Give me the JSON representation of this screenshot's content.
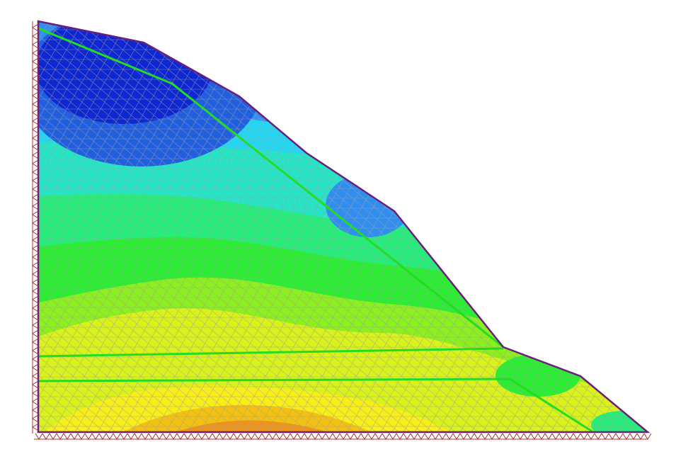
{
  "model": {
    "type": "finite-element-slope-contour",
    "layers": 4,
    "support_left": "roller-supports",
    "support_bottom": "pinned-supports"
  },
  "colors": {
    "background": "#ffffff",
    "outline": "#6b1f7a",
    "mesh": "#a0a0a0",
    "layer_boundary": "#22dd22",
    "support": "#b03030",
    "contour_scale": [
      "#0b1ecf",
      "#1f5fe0",
      "#2f8ef0",
      "#20d8f4",
      "#22e6c6",
      "#24ee7a",
      "#28f030",
      "#8cf01e",
      "#d8f21a",
      "#f8ee18",
      "#f4c20e",
      "#f09418"
    ]
  }
}
